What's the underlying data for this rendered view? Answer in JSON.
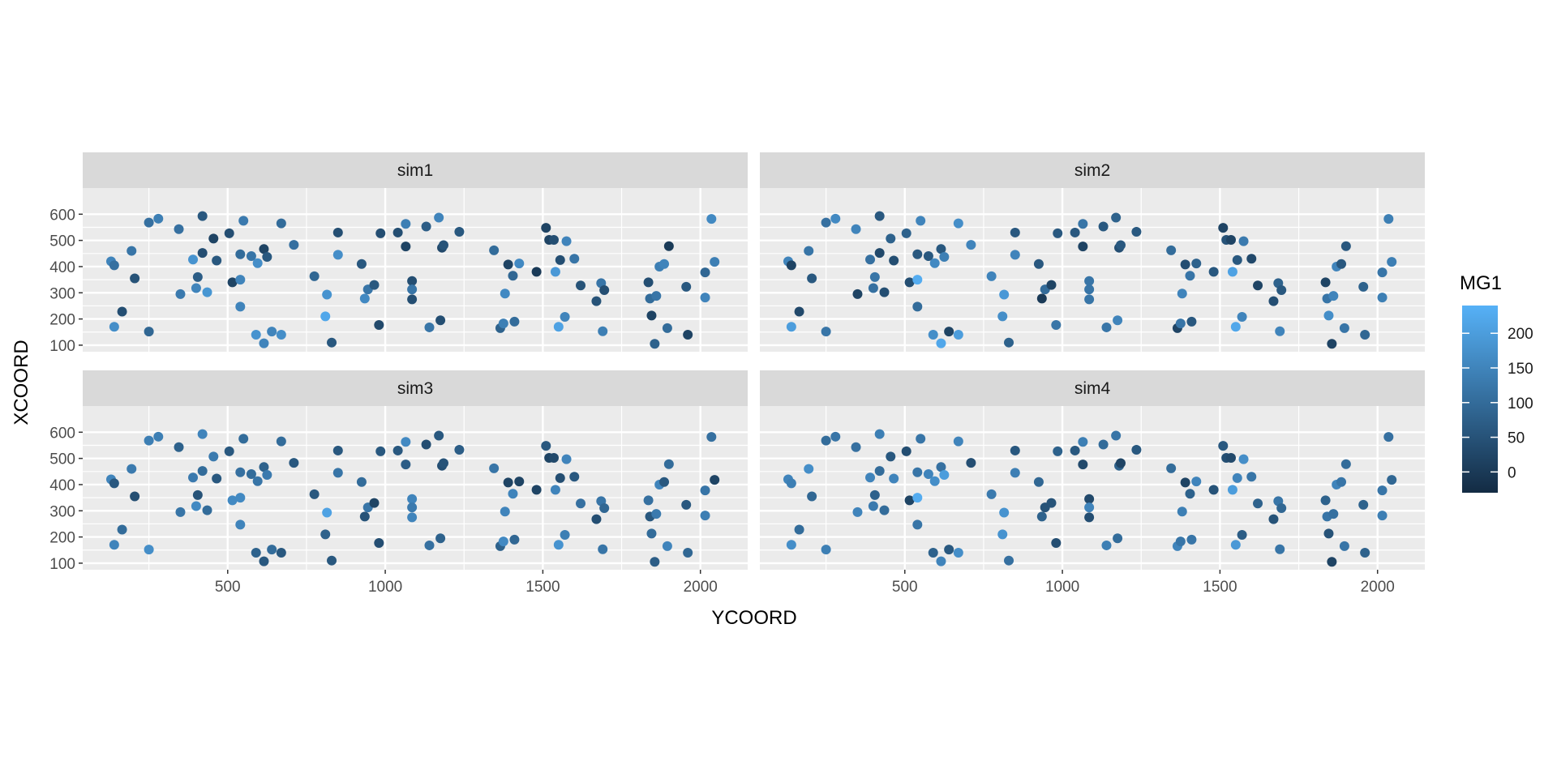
{
  "chart_data": {
    "type": "scatter",
    "xlabel": "YCOORD",
    "ylabel": "XCOORD",
    "xlim": [
      40,
      2150
    ],
    "ylim": [
      75,
      700
    ],
    "x_ticks": [
      500,
      1000,
      1500,
      2000
    ],
    "y_ticks": [
      100,
      200,
      300,
      400,
      500,
      600
    ],
    "grid": true,
    "legend": {
      "title": "MG1",
      "position": "right",
      "ticks": [
        0,
        50,
        100,
        150,
        200
      ],
      "range": [
        -30,
        240
      ],
      "color_low": "#132B43",
      "color_high": "#56B1F7"
    },
    "points": [
      {
        "x": 130,
        "y": 420
      },
      {
        "x": 140,
        "y": 405
      },
      {
        "x": 140,
        "y": 170
      },
      {
        "x": 165,
        "y": 228
      },
      {
        "x": 195,
        "y": 460
      },
      {
        "x": 205,
        "y": 355
      },
      {
        "x": 250,
        "y": 568
      },
      {
        "x": 250,
        "y": 152
      },
      {
        "x": 280,
        "y": 583
      },
      {
        "x": 345,
        "y": 543
      },
      {
        "x": 350,
        "y": 295
      },
      {
        "x": 390,
        "y": 427
      },
      {
        "x": 400,
        "y": 318
      },
      {
        "x": 405,
        "y": 360
      },
      {
        "x": 420,
        "y": 452
      },
      {
        "x": 420,
        "y": 593
      },
      {
        "x": 435,
        "y": 302
      },
      {
        "x": 455,
        "y": 507
      },
      {
        "x": 465,
        "y": 423
      },
      {
        "x": 505,
        "y": 527
      },
      {
        "x": 515,
        "y": 340
      },
      {
        "x": 540,
        "y": 447
      },
      {
        "x": 540,
        "y": 350
      },
      {
        "x": 540,
        "y": 247
      },
      {
        "x": 550,
        "y": 575
      },
      {
        "x": 575,
        "y": 440
      },
      {
        "x": 590,
        "y": 140
      },
      {
        "x": 595,
        "y": 413
      },
      {
        "x": 615,
        "y": 467
      },
      {
        "x": 615,
        "y": 107
      },
      {
        "x": 625,
        "y": 437
      },
      {
        "x": 640,
        "y": 152
      },
      {
        "x": 670,
        "y": 565
      },
      {
        "x": 670,
        "y": 140
      },
      {
        "x": 710,
        "y": 483
      },
      {
        "x": 775,
        "y": 363
      },
      {
        "x": 810,
        "y": 210
      },
      {
        "x": 815,
        "y": 293
      },
      {
        "x": 830,
        "y": 110
      },
      {
        "x": 850,
        "y": 530
      },
      {
        "x": 850,
        "y": 445
      },
      {
        "x": 925,
        "y": 410
      },
      {
        "x": 935,
        "y": 278
      },
      {
        "x": 945,
        "y": 313
      },
      {
        "x": 965,
        "y": 330
      },
      {
        "x": 980,
        "y": 177
      },
      {
        "x": 985,
        "y": 527
      },
      {
        "x": 1040,
        "y": 530
      },
      {
        "x": 1065,
        "y": 563
      },
      {
        "x": 1065,
        "y": 477
      },
      {
        "x": 1085,
        "y": 345
      },
      {
        "x": 1085,
        "y": 313
      },
      {
        "x": 1085,
        "y": 275
      },
      {
        "x": 1130,
        "y": 553
      },
      {
        "x": 1140,
        "y": 168
      },
      {
        "x": 1170,
        "y": 587
      },
      {
        "x": 1175,
        "y": 195
      },
      {
        "x": 1180,
        "y": 472
      },
      {
        "x": 1185,
        "y": 482
      },
      {
        "x": 1235,
        "y": 533
      },
      {
        "x": 1345,
        "y": 462
      },
      {
        "x": 1365,
        "y": 165
      },
      {
        "x": 1375,
        "y": 183
      },
      {
        "x": 1380,
        "y": 297
      },
      {
        "x": 1390,
        "y": 408
      },
      {
        "x": 1405,
        "y": 365
      },
      {
        "x": 1410,
        "y": 190
      },
      {
        "x": 1425,
        "y": 412
      },
      {
        "x": 1480,
        "y": 380
      },
      {
        "x": 1510,
        "y": 548
      },
      {
        "x": 1520,
        "y": 502
      },
      {
        "x": 1535,
        "y": 502
      },
      {
        "x": 1540,
        "y": 380
      },
      {
        "x": 1550,
        "y": 170
      },
      {
        "x": 1555,
        "y": 425
      },
      {
        "x": 1570,
        "y": 208
      },
      {
        "x": 1575,
        "y": 497
      },
      {
        "x": 1600,
        "y": 430
      },
      {
        "x": 1620,
        "y": 328
      },
      {
        "x": 1670,
        "y": 268
      },
      {
        "x": 1685,
        "y": 337
      },
      {
        "x": 1690,
        "y": 153
      },
      {
        "x": 1695,
        "y": 310
      },
      {
        "x": 1835,
        "y": 340
      },
      {
        "x": 1840,
        "y": 278
      },
      {
        "x": 1845,
        "y": 213
      },
      {
        "x": 1855,
        "y": 105
      },
      {
        "x": 1860,
        "y": 288
      },
      {
        "x": 1870,
        "y": 400
      },
      {
        "x": 1885,
        "y": 410
      },
      {
        "x": 1895,
        "y": 165
      },
      {
        "x": 1900,
        "y": 478
      },
      {
        "x": 1955,
        "y": 323
      },
      {
        "x": 1960,
        "y": 140
      },
      {
        "x": 2015,
        "y": 378
      },
      {
        "x": 2015,
        "y": 282
      },
      {
        "x": 2035,
        "y": 582
      },
      {
        "x": 2045,
        "y": 418
      }
    ],
    "panels": [
      {
        "title": "sim1",
        "mg1": [
          150,
          110,
          170,
          40,
          120,
          50,
          110,
          90,
          140,
          110,
          130,
          180,
          150,
          70,
          40,
          60,
          185,
          20,
          60,
          40,
          20,
          100,
          150,
          150,
          130,
          120,
          180,
          170,
          20,
          150,
          60,
          150,
          100,
          170,
          110,
          90,
          220,
          180,
          60,
          40,
          170,
          60,
          160,
          120,
          60,
          30,
          40,
          40,
          140,
          20,
          40,
          120,
          40,
          70,
          120,
          150,
          40,
          30,
          50,
          60,
          100,
          80,
          140,
          160,
          20,
          90,
          100,
          160,
          0,
          20,
          20,
          40,
          190,
          210,
          40,
          150,
          150,
          120,
          50,
          50,
          120,
          140,
          40,
          40,
          100,
          20,
          80,
          120,
          140,
          150,
          100,
          0,
          60,
          20,
          90,
          150,
          160,
          140
        ]
      },
      {
        "title": "sim2",
        "mg1": [
          150,
          20,
          200,
          30,
          120,
          60,
          110,
          120,
          160,
          150,
          20,
          110,
          110,
          120,
          30,
          60,
          40,
          80,
          40,
          80,
          40,
          60,
          230,
          100,
          150,
          60,
          170,
          160,
          60,
          220,
          140,
          20,
          170,
          200,
          150,
          150,
          170,
          190,
          80,
          60,
          150,
          60,
          0,
          100,
          20,
          120,
          60,
          60,
          120,
          20,
          120,
          120,
          120,
          60,
          120,
          80,
          150,
          40,
          60,
          60,
          100,
          20,
          120,
          150,
          40,
          120,
          60,
          80,
          60,
          20,
          50,
          20,
          210,
          220,
          60,
          150,
          130,
          30,
          20,
          40,
          80,
          150,
          60,
          20,
          120,
          170,
          20,
          150,
          150,
          60,
          120,
          60,
          80,
          90,
          120,
          140,
          140,
          140
        ]
      },
      {
        "title": "sim3",
        "mg1": [
          150,
          60,
          150,
          100,
          130,
          40,
          140,
          170,
          140,
          80,
          120,
          130,
          160,
          50,
          100,
          150,
          100,
          130,
          60,
          60,
          160,
          110,
          160,
          150,
          100,
          100,
          80,
          120,
          80,
          60,
          130,
          100,
          100,
          60,
          60,
          60,
          80,
          210,
          60,
          60,
          120,
          100,
          50,
          120,
          20,
          40,
          60,
          60,
          160,
          70,
          150,
          130,
          150,
          40,
          110,
          60,
          80,
          40,
          50,
          70,
          120,
          80,
          160,
          150,
          20,
          150,
          90,
          20,
          20,
          60,
          20,
          30,
          150,
          180,
          40,
          140,
          150,
          60,
          110,
          40,
          120,
          120,
          90,
          110,
          60,
          100,
          70,
          130,
          150,
          60,
          150,
          100,
          60,
          90,
          120,
          140,
          110,
          20
        ]
      },
      {
        "title": "sim4",
        "mg1": [
          150,
          140,
          170,
          100,
          170,
          90,
          100,
          140,
          120,
          110,
          150,
          150,
          130,
          80,
          100,
          140,
          100,
          60,
          150,
          40,
          20,
          120,
          230,
          120,
          120,
          150,
          80,
          170,
          110,
          150,
          200,
          60,
          150,
          170,
          40,
          130,
          180,
          180,
          110,
          60,
          140,
          90,
          80,
          50,
          50,
          40,
          80,
          60,
          140,
          30,
          30,
          150,
          40,
          100,
          140,
          120,
          100,
          80,
          20,
          60,
          100,
          150,
          120,
          140,
          20,
          80,
          120,
          150,
          50,
          60,
          40,
          30,
          200,
          190,
          150,
          70,
          170,
          120,
          80,
          50,
          120,
          120,
          90,
          80,
          120,
          50,
          20,
          110,
          150,
          120,
          120,
          100,
          80,
          80,
          120,
          140,
          110,
          90
        ]
      }
    ]
  }
}
